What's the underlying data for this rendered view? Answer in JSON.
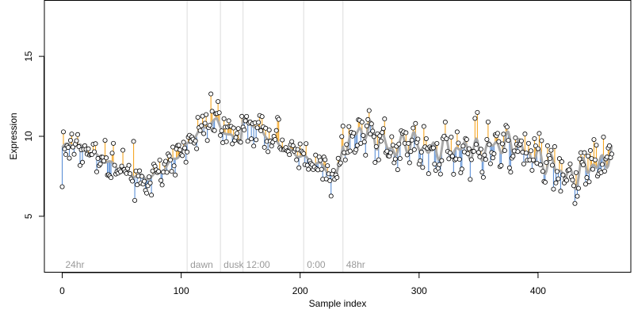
{
  "chart_data": {
    "type": "scatter",
    "title": "",
    "xlabel": "Sample index",
    "ylabel": "Expression",
    "xlim": [
      -15,
      478
    ],
    "ylim": [
      1.5,
      18.5
    ],
    "x_ticks": [
      0,
      100,
      200,
      300,
      400
    ],
    "y_ticks": [
      5,
      10,
      15
    ],
    "grid": false,
    "colors": {
      "above_fit": "#f5a623",
      "below_fit": "#5b8fd6",
      "fit_line": "#a9a9a9",
      "points_fill": "#ffffff",
      "points_stroke": "#000000",
      "phase_lines": "#dcdcdc"
    },
    "phase_markers": [
      {
        "x": 0,
        "label": "24hr",
        "line": false
      },
      {
        "x": 105,
        "label": "dawn",
        "line": true
      },
      {
        "x": 133,
        "label": "dusk",
        "line": true
      },
      {
        "x": 152,
        "label": "12:00",
        "line": true
      },
      {
        "x": 203,
        "label": "0:00",
        "line": true
      },
      {
        "x": 236,
        "label": "48hr",
        "line": true
      }
    ],
    "fit_anchors": [
      [
        0,
        9.3
      ],
      [
        10,
        9.6
      ],
      [
        20,
        9.1
      ],
      [
        30,
        8.7
      ],
      [
        40,
        8.3
      ],
      [
        50,
        8.0
      ],
      [
        60,
        7.6
      ],
      [
        70,
        7.4
      ],
      [
        80,
        7.6
      ],
      [
        90,
        8.3
      ],
      [
        100,
        9.0
      ],
      [
        110,
        9.9
      ],
      [
        120,
        10.6
      ],
      [
        130,
        11.0
      ],
      [
        135,
        10.4
      ],
      [
        140,
        10.0
      ],
      [
        150,
        9.8
      ],
      [
        152,
        11.0
      ],
      [
        160,
        10.8
      ],
      [
        170,
        10.1
      ],
      [
        180,
        9.6
      ],
      [
        190,
        9.1
      ],
      [
        200,
        8.8
      ],
      [
        210,
        8.4
      ],
      [
        220,
        8.1
      ],
      [
        230,
        7.3
      ],
      [
        236,
        9.5
      ],
      [
        240,
        9.6
      ],
      [
        250,
        10.4
      ],
      [
        260,
        10.2
      ],
      [
        270,
        9.6
      ],
      [
        280,
        9.1
      ],
      [
        290,
        9.7
      ],
      [
        300,
        9.5
      ],
      [
        310,
        9.0
      ],
      [
        320,
        9.4
      ],
      [
        330,
        9.1
      ],
      [
        340,
        9.3
      ],
      [
        350,
        9.0
      ],
      [
        360,
        9.4
      ],
      [
        370,
        9.5
      ],
      [
        380,
        9.6
      ],
      [
        390,
        9.0
      ],
      [
        400,
        8.6
      ],
      [
        410,
        8.3
      ],
      [
        420,
        7.8
      ],
      [
        430,
        7.3
      ],
      [
        440,
        8.2
      ],
      [
        450,
        8.1
      ],
      [
        460,
        8.9
      ]
    ],
    "noise_seed": 11,
    "num_points": 463
  }
}
